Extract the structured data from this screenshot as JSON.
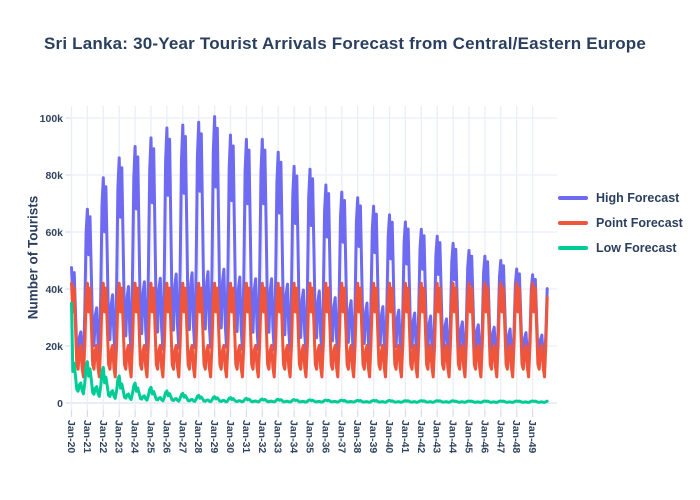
{
  "chart_data": {
    "type": "line",
    "title": "Sri Lanka: 30-Year Tourist Arrivals Forecast from Central/Eastern Europe",
    "xlabel": "",
    "ylabel": "Number of Tourists",
    "x_tick_labels": [
      "Jan-20",
      "Jan-21",
      "Jan-22",
      "Jan-23",
      "Jan-24",
      "Jan-25",
      "Jan-26",
      "Jan-27",
      "Jan-28",
      "Jan-29",
      "Jan-30",
      "Jan-31",
      "Jan-32",
      "Jan-33",
      "Jan-34",
      "Jan-35",
      "Jan-36",
      "Jan-37",
      "Jan-38",
      "Jan-39",
      "Jan-40",
      "Jan-41",
      "Jan-42",
      "Jan-43",
      "Jan-44",
      "Jan-45",
      "Jan-46",
      "Jan-47",
      "Jan-48",
      "Jan-49"
    ],
    "y_tick_labels": [
      "0",
      "20k",
      "40k",
      "60k",
      "80k",
      "100k"
    ],
    "y_tick_values_thousands": [
      0,
      20,
      40,
      60,
      80,
      100
    ],
    "ylim_thousands": [
      0,
      105
    ],
    "grid": true,
    "legend_position": "right-middle",
    "x_resolution": "monthly",
    "x_range": "Jan-2020 to Dec-2049",
    "units": "thousands of tourists",
    "model_note": "monthly value (in thousands) = trough[year] + seasonal_profile[month]*(peak[year]-trough[year]); Oct-Dec ramp toward next year's peak; series with peak_carry='next' use next year's peak from Feb onward (fast initial decay)",
    "seasonal_profile_jan_to_dec": [
      1.0,
      0.7,
      0.95,
      0.55,
      0.15,
      0.1,
      0.3,
      0.35,
      0.12,
      0.02,
      0.35,
      0.85
    ],
    "series": [
      {
        "name": "High Forecast",
        "color": "#6e6af2",
        "peak_carry": "current",
        "annual_peaks_k": [
          47.5,
          68,
          79,
          86,
          90,
          93,
          96.5,
          97.5,
          98.5,
          100.5,
          94,
          92.5,
          92.5,
          88,
          83,
          82,
          76.5,
          74,
          72,
          69,
          66,
          63.5,
          61,
          58.5,
          56,
          53.5,
          51.5,
          50,
          47,
          45
        ],
        "annual_troughs_k": [
          12.8,
          14.8,
          15.9,
          16.6,
          17,
          17.3,
          17.7,
          17.8,
          17.9,
          18.1,
          17.4,
          17.3,
          17.3,
          16.8,
          16.3,
          16.3,
          15.7,
          15.4,
          15.2,
          14.9,
          14.6,
          14.4,
          14.1,
          13.9,
          13.6,
          13.4,
          13.2,
          13,
          12.7,
          12.5
        ]
      },
      {
        "name": "Point Forecast",
        "color": "#ef553b",
        "peak_carry": "current",
        "annual_peaks_k": [
          42,
          42,
          42,
          42,
          42,
          42,
          42,
          42,
          42,
          42,
          42,
          42,
          42,
          42,
          42,
          42,
          42,
          42,
          42,
          42,
          42,
          42,
          42,
          42,
          42,
          42,
          42,
          42,
          42,
          42
        ],
        "annual_troughs_k": [
          8.5,
          8.5,
          8.5,
          8.5,
          8.5,
          8.5,
          8.5,
          8.5,
          8.5,
          8.5,
          8.5,
          8.5,
          8.5,
          8.5,
          8.5,
          8.5,
          8.5,
          8.5,
          8.5,
          8.5,
          8.5,
          8.5,
          8.5,
          8.5,
          8.5,
          8.5,
          8.5,
          8.5,
          8.5,
          8.5
        ]
      },
      {
        "name": "Low Forecast",
        "color": "#00cc96",
        "peak_carry": "next",
        "annual_peaks_k": [
          35,
          14.5,
          12.5,
          9.5,
          7,
          5.5,
          4.2,
          3.4,
          2.7,
          2.2,
          1.9,
          1.6,
          1.4,
          1.3,
          1.2,
          1.1,
          1,
          1,
          0.9,
          0.9,
          0.9,
          0.8,
          0.8,
          0.8,
          0.8,
          0.7,
          0.7,
          0.7,
          0.7,
          0.7
        ],
        "annual_troughs_k": [
          3,
          2.1,
          1.5,
          1.1,
          0.9,
          0.7,
          0.6,
          0.5,
          0.45,
          0.4,
          0.4,
          0.35,
          0.35,
          0.3,
          0.3,
          0.3,
          0.3,
          0.3,
          0.25,
          0.25,
          0.25,
          0.25,
          0.25,
          0.25,
          0.25,
          0.2,
          0.2,
          0.2,
          0.2,
          0.2
        ]
      }
    ]
  },
  "styles": {
    "title_color": "#2a3f5f",
    "tick_label_color": "#31445f",
    "grid_color": "#e9eef7",
    "zero_line_color": "#dbe3f0",
    "tick_mark_color": "#d4deec",
    "background": "#ffffff"
  }
}
